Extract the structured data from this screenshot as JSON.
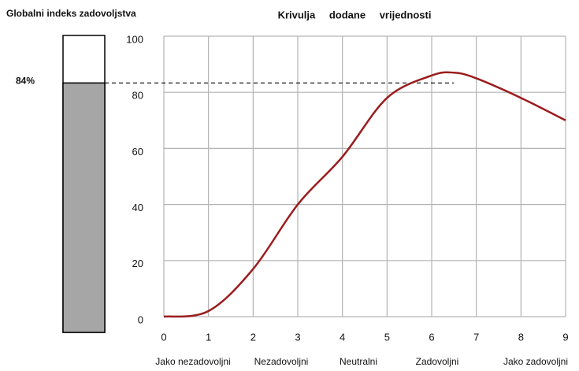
{
  "chart_data": [
    {
      "type": "gauge",
      "title": "Globalni indeks zadovoljstva",
      "values": [
        84
      ],
      "value_labels": [
        "84%"
      ],
      "ylim": [
        0,
        100
      ],
      "color": "#a6a6a6"
    },
    {
      "type": "line",
      "title": "Krivulja dodane vrijednosti",
      "x": [
        0,
        1,
        2,
        3,
        4,
        5,
        6,
        6.5,
        7,
        8,
        9
      ],
      "series": [
        {
          "color": "#9b1c1c",
          "values": [
            0,
            2,
            17,
            40,
            57,
            78,
            86,
            87,
            85,
            78,
            70
          ]
        }
      ],
      "xlim": [
        0,
        9
      ],
      "xticks": [
        0,
        1,
        2,
        3,
        4,
        5,
        6,
        7,
        8,
        9
      ],
      "ylim": [
        0,
        100
      ],
      "yticks": [
        0,
        20,
        40,
        60,
        80,
        100
      ],
      "grid": true,
      "categories": [
        "Jako nezadovoljni",
        "Nezadovoljni",
        "Neutralni",
        "Zadovoljni",
        "Jako zadovoljni"
      ]
    }
  ]
}
